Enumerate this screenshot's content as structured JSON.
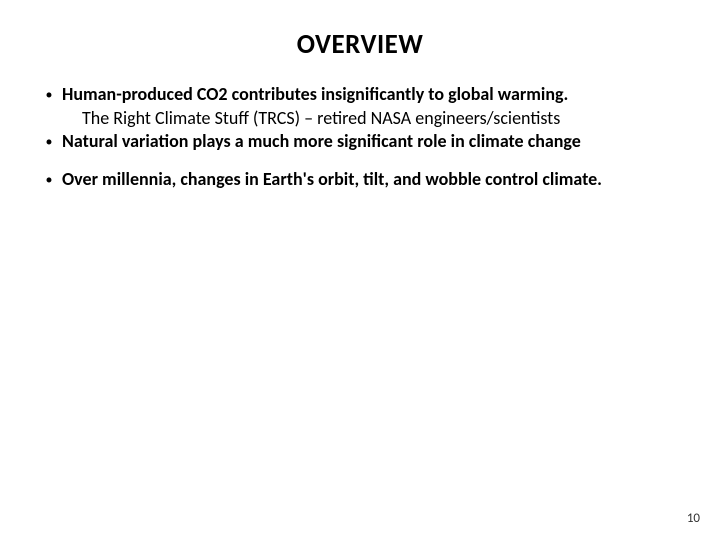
{
  "slide": {
    "title": "OVERVIEW",
    "bullets": {
      "b1": "Human-produced CO2 contributes insignificantly to global warming.",
      "b1_sub": "The Right Climate Stuff (TRCS) – retired NASA engineers/scientists",
      "b2": "Natural variation plays a much more significant role in climate change",
      "b3": "Over millennia, changes in Earth's orbit, tilt, and wobble control climate."
    },
    "page_number": "10"
  },
  "style": {
    "background_color": "#ffffff",
    "text_color": "#000000",
    "title_fontsize": 27,
    "body_fontsize": 18,
    "page_num_fontsize": 13,
    "bullet_char": "•"
  }
}
